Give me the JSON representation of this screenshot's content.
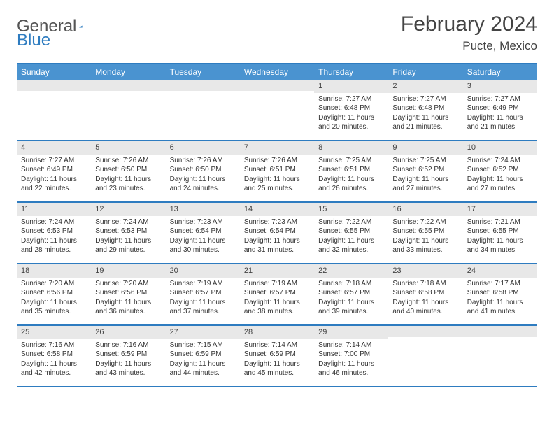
{
  "logo": {
    "text1": "General",
    "text2": "Blue"
  },
  "title": "February 2024",
  "location": "Pucte, Mexico",
  "colors": {
    "header_bar": "#4a93d0",
    "border": "#2e7cc0",
    "daynum_bg": "#e8e8e8",
    "text": "#333333"
  },
  "daysOfWeek": [
    "Sunday",
    "Monday",
    "Tuesday",
    "Wednesday",
    "Thursday",
    "Friday",
    "Saturday"
  ],
  "weeks": [
    [
      {
        "n": "",
        "sr": "",
        "ss": "",
        "dl": ""
      },
      {
        "n": "",
        "sr": "",
        "ss": "",
        "dl": ""
      },
      {
        "n": "",
        "sr": "",
        "ss": "",
        "dl": ""
      },
      {
        "n": "",
        "sr": "",
        "ss": "",
        "dl": ""
      },
      {
        "n": "1",
        "sr": "Sunrise: 7:27 AM",
        "ss": "Sunset: 6:48 PM",
        "dl": "Daylight: 11 hours and 20 minutes."
      },
      {
        "n": "2",
        "sr": "Sunrise: 7:27 AM",
        "ss": "Sunset: 6:48 PM",
        "dl": "Daylight: 11 hours and 21 minutes."
      },
      {
        "n": "3",
        "sr": "Sunrise: 7:27 AM",
        "ss": "Sunset: 6:49 PM",
        "dl": "Daylight: 11 hours and 21 minutes."
      }
    ],
    [
      {
        "n": "4",
        "sr": "Sunrise: 7:27 AM",
        "ss": "Sunset: 6:49 PM",
        "dl": "Daylight: 11 hours and 22 minutes."
      },
      {
        "n": "5",
        "sr": "Sunrise: 7:26 AM",
        "ss": "Sunset: 6:50 PM",
        "dl": "Daylight: 11 hours and 23 minutes."
      },
      {
        "n": "6",
        "sr": "Sunrise: 7:26 AM",
        "ss": "Sunset: 6:50 PM",
        "dl": "Daylight: 11 hours and 24 minutes."
      },
      {
        "n": "7",
        "sr": "Sunrise: 7:26 AM",
        "ss": "Sunset: 6:51 PM",
        "dl": "Daylight: 11 hours and 25 minutes."
      },
      {
        "n": "8",
        "sr": "Sunrise: 7:25 AM",
        "ss": "Sunset: 6:51 PM",
        "dl": "Daylight: 11 hours and 26 minutes."
      },
      {
        "n": "9",
        "sr": "Sunrise: 7:25 AM",
        "ss": "Sunset: 6:52 PM",
        "dl": "Daylight: 11 hours and 27 minutes."
      },
      {
        "n": "10",
        "sr": "Sunrise: 7:24 AM",
        "ss": "Sunset: 6:52 PM",
        "dl": "Daylight: 11 hours and 27 minutes."
      }
    ],
    [
      {
        "n": "11",
        "sr": "Sunrise: 7:24 AM",
        "ss": "Sunset: 6:53 PM",
        "dl": "Daylight: 11 hours and 28 minutes."
      },
      {
        "n": "12",
        "sr": "Sunrise: 7:24 AM",
        "ss": "Sunset: 6:53 PM",
        "dl": "Daylight: 11 hours and 29 minutes."
      },
      {
        "n": "13",
        "sr": "Sunrise: 7:23 AM",
        "ss": "Sunset: 6:54 PM",
        "dl": "Daylight: 11 hours and 30 minutes."
      },
      {
        "n": "14",
        "sr": "Sunrise: 7:23 AM",
        "ss": "Sunset: 6:54 PM",
        "dl": "Daylight: 11 hours and 31 minutes."
      },
      {
        "n": "15",
        "sr": "Sunrise: 7:22 AM",
        "ss": "Sunset: 6:55 PM",
        "dl": "Daylight: 11 hours and 32 minutes."
      },
      {
        "n": "16",
        "sr": "Sunrise: 7:22 AM",
        "ss": "Sunset: 6:55 PM",
        "dl": "Daylight: 11 hours and 33 minutes."
      },
      {
        "n": "17",
        "sr": "Sunrise: 7:21 AM",
        "ss": "Sunset: 6:55 PM",
        "dl": "Daylight: 11 hours and 34 minutes."
      }
    ],
    [
      {
        "n": "18",
        "sr": "Sunrise: 7:20 AM",
        "ss": "Sunset: 6:56 PM",
        "dl": "Daylight: 11 hours and 35 minutes."
      },
      {
        "n": "19",
        "sr": "Sunrise: 7:20 AM",
        "ss": "Sunset: 6:56 PM",
        "dl": "Daylight: 11 hours and 36 minutes."
      },
      {
        "n": "20",
        "sr": "Sunrise: 7:19 AM",
        "ss": "Sunset: 6:57 PM",
        "dl": "Daylight: 11 hours and 37 minutes."
      },
      {
        "n": "21",
        "sr": "Sunrise: 7:19 AM",
        "ss": "Sunset: 6:57 PM",
        "dl": "Daylight: 11 hours and 38 minutes."
      },
      {
        "n": "22",
        "sr": "Sunrise: 7:18 AM",
        "ss": "Sunset: 6:57 PM",
        "dl": "Daylight: 11 hours and 39 minutes."
      },
      {
        "n": "23",
        "sr": "Sunrise: 7:18 AM",
        "ss": "Sunset: 6:58 PM",
        "dl": "Daylight: 11 hours and 40 minutes."
      },
      {
        "n": "24",
        "sr": "Sunrise: 7:17 AM",
        "ss": "Sunset: 6:58 PM",
        "dl": "Daylight: 11 hours and 41 minutes."
      }
    ],
    [
      {
        "n": "25",
        "sr": "Sunrise: 7:16 AM",
        "ss": "Sunset: 6:58 PM",
        "dl": "Daylight: 11 hours and 42 minutes."
      },
      {
        "n": "26",
        "sr": "Sunrise: 7:16 AM",
        "ss": "Sunset: 6:59 PM",
        "dl": "Daylight: 11 hours and 43 minutes."
      },
      {
        "n": "27",
        "sr": "Sunrise: 7:15 AM",
        "ss": "Sunset: 6:59 PM",
        "dl": "Daylight: 11 hours and 44 minutes."
      },
      {
        "n": "28",
        "sr": "Sunrise: 7:14 AM",
        "ss": "Sunset: 6:59 PM",
        "dl": "Daylight: 11 hours and 45 minutes."
      },
      {
        "n": "29",
        "sr": "Sunrise: 7:14 AM",
        "ss": "Sunset: 7:00 PM",
        "dl": "Daylight: 11 hours and 46 minutes."
      },
      {
        "n": "",
        "sr": "",
        "ss": "",
        "dl": ""
      },
      {
        "n": "",
        "sr": "",
        "ss": "",
        "dl": ""
      }
    ]
  ]
}
